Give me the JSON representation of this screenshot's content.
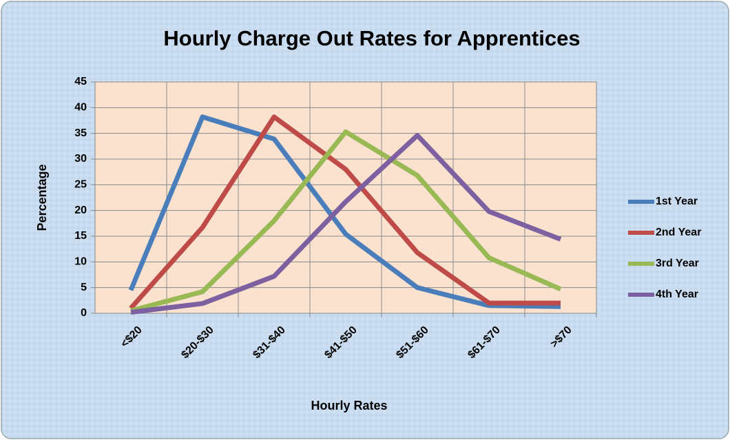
{
  "chart_data": {
    "type": "line",
    "title": "Hourly Charge Out Rates for Apprentices",
    "xlabel": "Hourly Rates",
    "ylabel": "Percentage",
    "categories": [
      "<$20",
      "$20-$30",
      "$31-$40",
      "$41-$50",
      "$51-$60",
      "$61-$70",
      ">$70"
    ],
    "series": [
      {
        "name": "1st Year",
        "color": "#4a7ebb",
        "values": [
          4.5,
          38.2,
          33.9,
          15.4,
          5,
          1.5,
          1.3
        ]
      },
      {
        "name": "2nd Year",
        "color": "#be4b48",
        "values": [
          1,
          16.7,
          38.2,
          28,
          11.8,
          2,
          2
        ]
      },
      {
        "name": "3rd Year",
        "color": "#98b954",
        "values": [
          0.5,
          4.2,
          18,
          35.3,
          26.8,
          10.8,
          4.7
        ]
      },
      {
        "name": "4th Year",
        "color": "#7d60a0",
        "values": [
          0.2,
          1.9,
          7.2,
          21.7,
          34.6,
          19.8,
          14.4
        ]
      }
    ],
    "ylim": [
      0,
      45
    ],
    "yticks": [
      0,
      5,
      10,
      15,
      20,
      25,
      30,
      35,
      40,
      45
    ],
    "grid": true,
    "legend": "right"
  }
}
